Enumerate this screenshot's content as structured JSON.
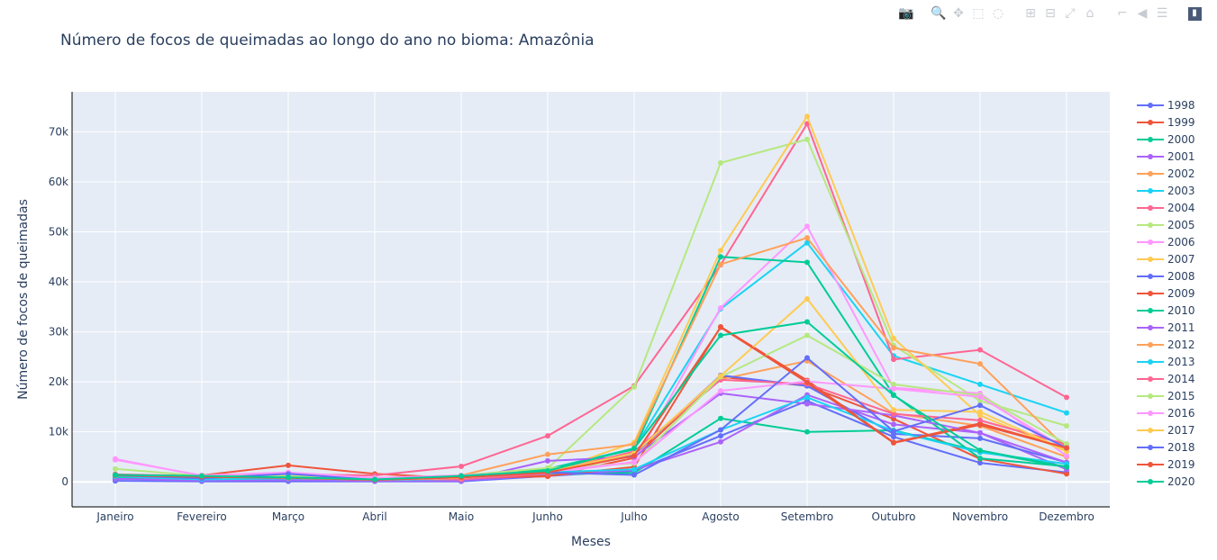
{
  "chart_title": "Número de focos de queimadas ao longo do ano no bioma: Amazônia",
  "modebar": {
    "buttons": [
      {
        "name": "camera-icon",
        "glyph": "📷"
      },
      {
        "name": "zoom-icon",
        "glyph": "🔍",
        "active": true
      },
      {
        "name": "pan-icon",
        "glyph": "✥"
      },
      {
        "name": "box-select-icon",
        "glyph": "⬚"
      },
      {
        "name": "lasso-select-icon",
        "glyph": "◌"
      },
      {
        "name": "zoom-in-icon",
        "glyph": "⊞"
      },
      {
        "name": "zoom-out-icon",
        "glyph": "⊟"
      },
      {
        "name": "autoscale-icon",
        "glyph": "⤢"
      },
      {
        "name": "reset-axes-icon",
        "glyph": "⌂"
      },
      {
        "name": "spike-lines-icon",
        "glyph": "⌐"
      },
      {
        "name": "hover-closest-icon",
        "glyph": "◀"
      },
      {
        "name": "hover-compare-icon",
        "glyph": "☰"
      },
      {
        "name": "plotly-logo-icon",
        "glyph": "▮"
      }
    ]
  },
  "chart_data": {
    "type": "line",
    "title": "Número de focos de queimadas ao longo do ano no bioma: Amazônia",
    "xlabel": "Meses",
    "ylabel": "Número de focos de queimadas",
    "ylim": [
      -5000,
      78000
    ],
    "ytick_values": [
      0,
      10000,
      20000,
      30000,
      40000,
      50000,
      60000,
      70000
    ],
    "ytick_labels": [
      "0",
      "10k",
      "20k",
      "30k",
      "40k",
      "50k",
      "60k",
      "70k"
    ],
    "grid": true,
    "legend_position": "right",
    "categories": [
      "Janeiro",
      "Fevereiro",
      "Março",
      "Abril",
      "Maio",
      "Junho",
      "Julho",
      "Agosto",
      "Setembro",
      "Outubro",
      "Novembro",
      "Dezembro"
    ],
    "series": [
      {
        "name": "1998",
        "color": "#636efa",
        "values": [
          200,
          100,
          100,
          100,
          100,
          1200,
          2200,
          9200,
          16200,
          9000,
          3800,
          1900
        ]
      },
      {
        "name": "1999",
        "color": "#EF553B",
        "values": [
          800,
          1300,
          3300,
          1600,
          700,
          1100,
          4800,
          21000,
          19200,
          12600,
          4600,
          1600
        ]
      },
      {
        "name": "2000",
        "color": "#00cc96",
        "values": [
          600,
          500,
          800,
          400,
          300,
          1500,
          1800,
          12700,
          10000,
          10300,
          6100,
          2900
        ]
      },
      {
        "name": "2001",
        "color": "#ab63fa",
        "values": [
          800,
          600,
          700,
          500,
          300,
          1300,
          2400,
          8000,
          17400,
          11500,
          9800,
          2500
        ]
      },
      {
        "name": "2002",
        "color": "#FFA15A",
        "values": [
          1500,
          1000,
          900,
          800,
          700,
          2600,
          5800,
          20500,
          24200,
          13700,
          11200,
          5000
        ]
      },
      {
        "name": "2003",
        "color": "#19d3f3",
        "values": [
          900,
          600,
          700,
          500,
          800,
          2600,
          6700,
          34600,
          47800,
          25200,
          19500,
          13800
        ]
      },
      {
        "name": "2004",
        "color": "#FF6692",
        "values": [
          1300,
          1100,
          1500,
          1300,
          3100,
          9200,
          19200,
          43400,
          71600,
          24500,
          26400,
          16900
        ]
      },
      {
        "name": "2005",
        "color": "#B6E880",
        "values": [
          1000,
          800,
          900,
          500,
          600,
          2700,
          19000,
          63800,
          68500,
          27300,
          16200,
          11200
        ]
      },
      {
        "name": "2006",
        "color": "#FF97FF",
        "values": [
          4600,
          1200,
          1500,
          700,
          700,
          1700,
          4000,
          34800,
          51100,
          18800,
          17700,
          5200
        ]
      },
      {
        "name": "2007",
        "color": "#FECB52",
        "values": [
          1200,
          900,
          1100,
          400,
          800,
          1800,
          7900,
          46300,
          73100,
          28700,
          13300,
          6100
        ]
      },
      {
        "name": "2008",
        "color": "#636efa",
        "values": [
          900,
          600,
          900,
          600,
          600,
          2200,
          5500,
          21300,
          19200,
          9600,
          8700,
          3900
        ]
      },
      {
        "name": "2009",
        "color": "#EF553B",
        "values": [
          1200,
          900,
          900,
          600,
          700,
          1200,
          3000,
          31000,
          20300,
          7900,
          11700,
          6800
        ]
      },
      {
        "name": "2010",
        "color": "#00cc96",
        "values": [
          900,
          700,
          800,
          500,
          600,
          2600,
          6500,
          45000,
          43900,
          17400,
          4700,
          3100
        ]
      },
      {
        "name": "2011",
        "color": "#ab63fa",
        "values": [
          600,
          300,
          400,
          200,
          200,
          4200,
          5000,
          17700,
          15600,
          13300,
          9800,
          3900
        ]
      },
      {
        "name": "2012",
        "color": "#FFA15A",
        "values": [
          1500,
          600,
          1000,
          700,
          1300,
          5500,
          7500,
          43500,
          48800,
          26800,
          23600,
          6700
        ]
      },
      {
        "name": "2013",
        "color": "#19d3f3",
        "values": [
          1100,
          500,
          700,
          400,
          500,
          1900,
          2500,
          10400,
          16900,
          10200,
          5900,
          3600
        ]
      },
      {
        "name": "2014",
        "color": "#FF6692",
        "values": [
          1500,
          1200,
          800,
          600,
          500,
          1700,
          6100,
          20400,
          19600,
          13600,
          12300,
          7500
        ]
      },
      {
        "name": "2015",
        "color": "#B6E880",
        "values": [
          2600,
          1200,
          1300,
          600,
          1300,
          2800,
          3700,
          21000,
          29300,
          19500,
          17300,
          7600
        ]
      },
      {
        "name": "2016",
        "color": "#FF97FF",
        "values": [
          4400,
          1300,
          1900,
          800,
          1300,
          2100,
          3900,
          18200,
          20100,
          18600,
          17000,
          6500
        ]
      },
      {
        "name": "2017",
        "color": "#FECB52",
        "values": [
          1300,
          1200,
          800,
          400,
          800,
          2000,
          5700,
          21200,
          36600,
          14400,
          14000,
          6300
        ]
      },
      {
        "name": "2018",
        "color": "#636efa",
        "values": [
          1300,
          700,
          1600,
          400,
          900,
          1900,
          1400,
          10400,
          24800,
          10100,
          15300,
          6800
        ]
      },
      {
        "name": "2019",
        "color": "#EF553B",
        "values": [
          1300,
          1000,
          800,
          400,
          900,
          1900,
          5200,
          30900,
          19900,
          7800,
          11400,
          6800
        ]
      },
      {
        "name": "2020",
        "color": "#00cc96",
        "values": [
          1400,
          1200,
          900,
          500,
          1200,
          2200,
          6700,
          29300,
          32000,
          17300,
          6300,
          3000
        ]
      }
    ]
  }
}
